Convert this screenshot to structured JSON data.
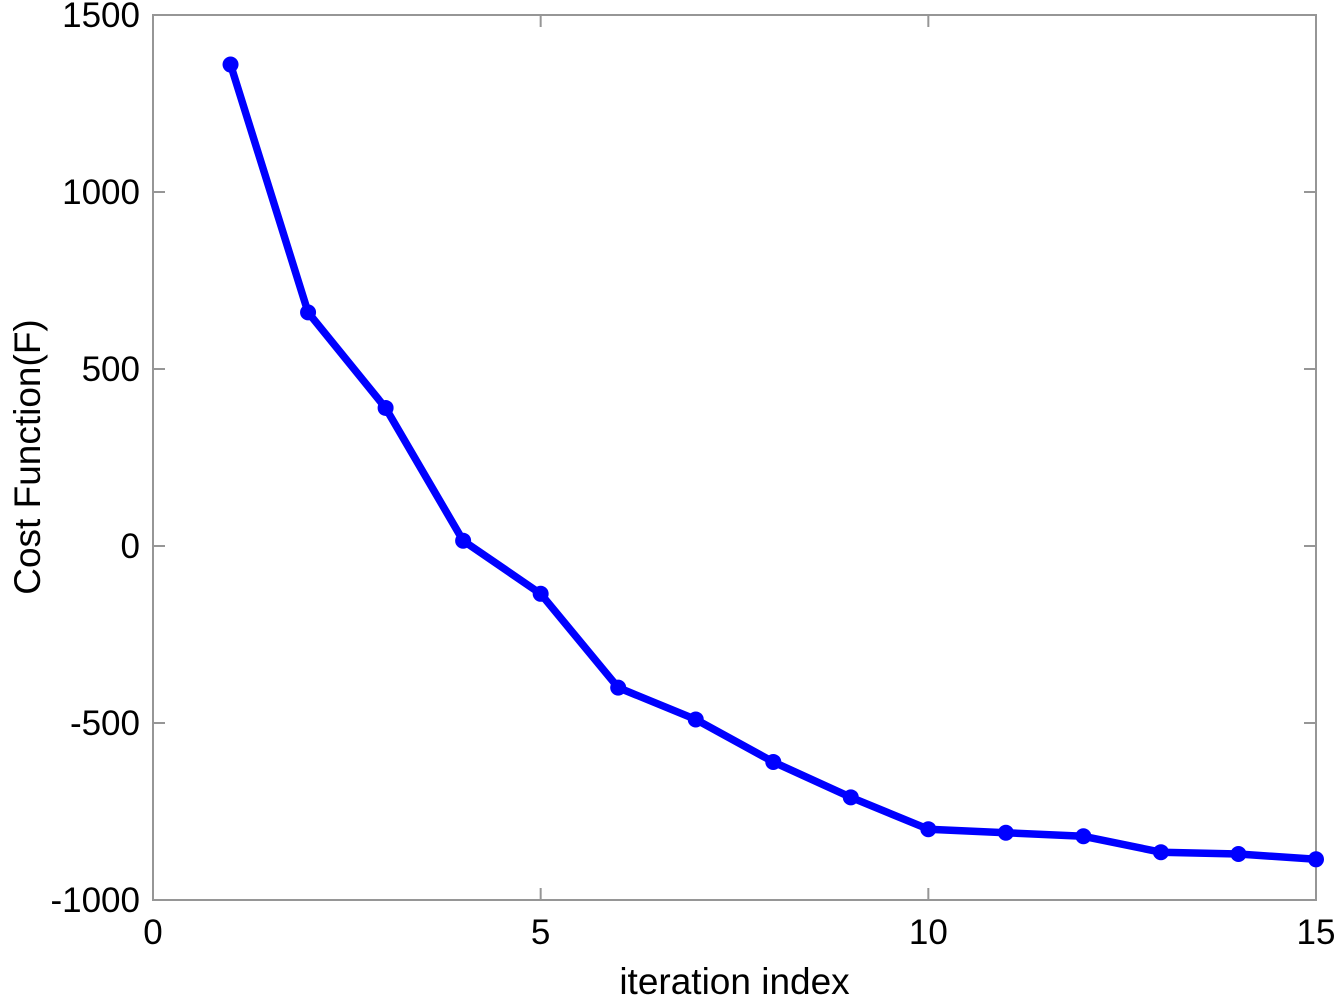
{
  "chart_data": {
    "type": "line",
    "title": "",
    "xlabel": "iteration index",
    "ylabel": "Cost Function(F)",
    "x": [
      1,
      2,
      3,
      4,
      5,
      6,
      7,
      8,
      9,
      10,
      11,
      12,
      13,
      14,
      15
    ],
    "y": [
      1360,
      660,
      390,
      15,
      -135,
      -400,
      -490,
      -610,
      -710,
      -800,
      -810,
      -820,
      -865,
      -870,
      -885
    ],
    "xlim": [
      0,
      15
    ],
    "ylim": [
      -1000,
      1500
    ],
    "xticks": [
      0,
      5,
      10,
      15
    ],
    "xtick_labels": [
      "0",
      "5",
      "10",
      "15"
    ],
    "yticks": [
      -1000,
      -500,
      0,
      500,
      1000,
      1500
    ],
    "ytick_labels": [
      "-1000",
      "-500",
      "0",
      "500",
      "1000",
      "1500"
    ],
    "grid": false,
    "legend": false,
    "line_color": "#0000ff",
    "marker": "circle",
    "marker_color": "#0000ff",
    "axis_color": "#969696",
    "tick_label_color": "#000000",
    "background_color": "#ffffff"
  }
}
